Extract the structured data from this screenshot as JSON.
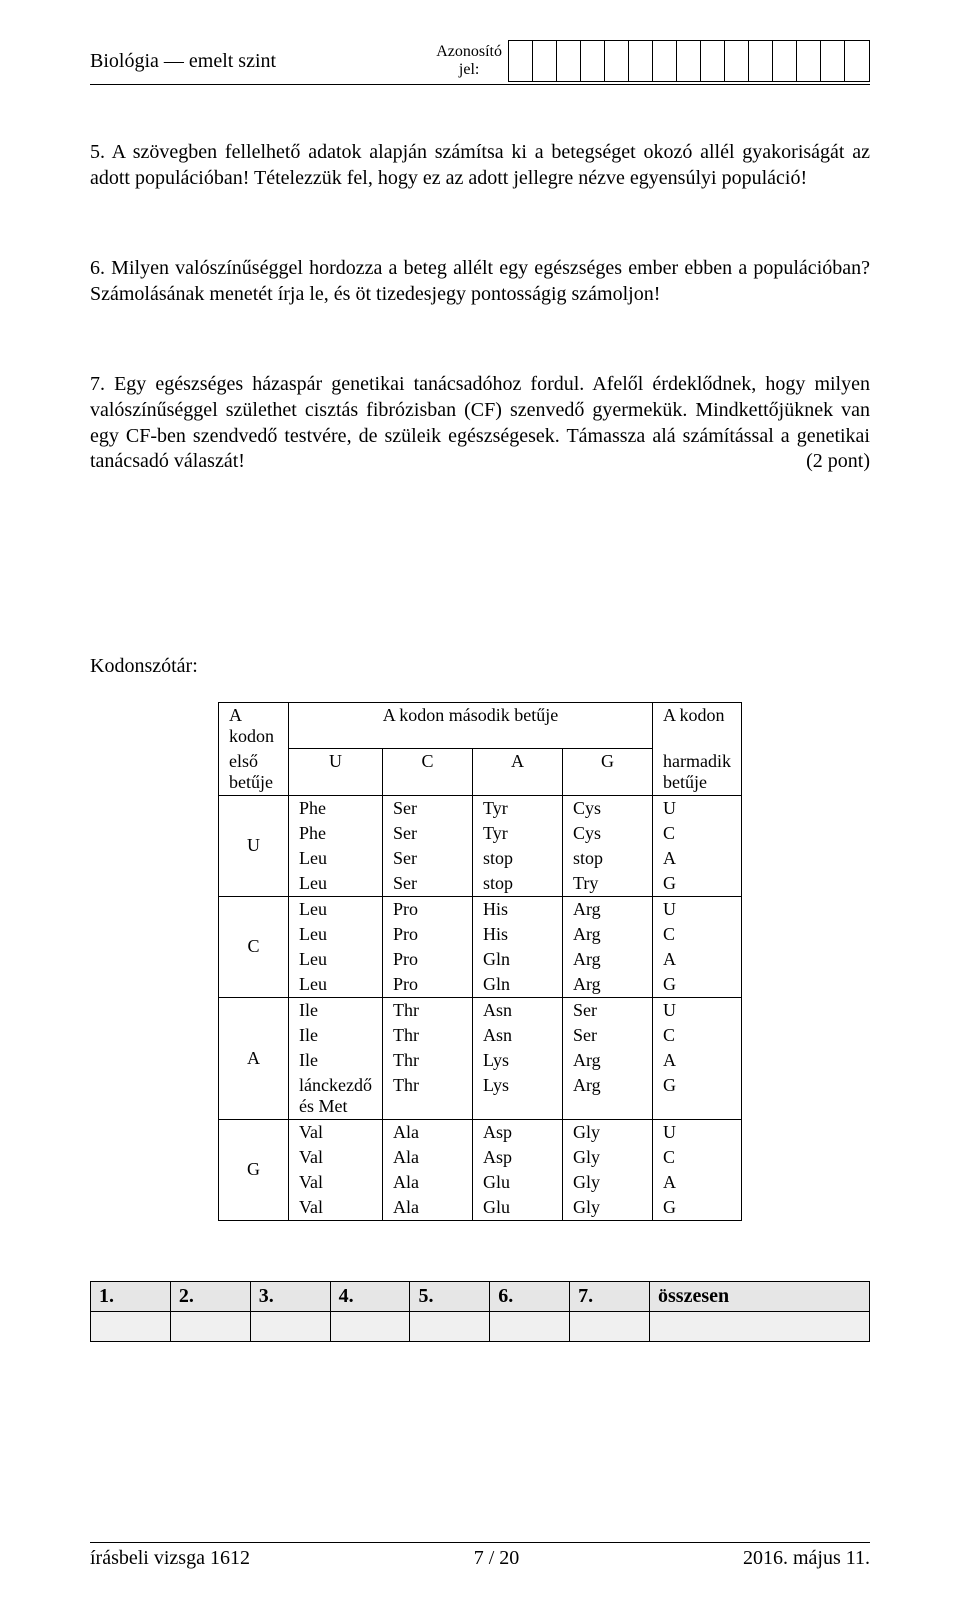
{
  "header": {
    "subject": "Biológia — emelt szint",
    "id_label_line1": "Azonosító",
    "id_label_line2": "jel:",
    "box_count": 15
  },
  "questions": {
    "q5": "5. A szövegben fellelhető adatok alapján számítsa ki a betegséget okozó allél gyakoriságát az adott populációban! Tételezzük fel, hogy ez az adott jellegre nézve egyensúlyi populáció!",
    "q6": "6. Milyen valószínűséggel hordozza a beteg allélt egy egészséges ember ebben a populációban? Számolásának menetét írja le, és öt tizedesjegy pontosságig számoljon!",
    "q7": "7. Egy egészséges házaspár genetikai tanácsadóhoz fordul. Afelől érdeklődnek, hogy milyen valószínűséggel születhet cisztás fibrózisban (CF) szenvedő gyermekük. Mindkettőjüknek van egy CF-ben szendvedő testvére, de szüleik egészségesek. Támassza alá számítással a genetikai tanácsadó válaszát!",
    "q7_points": "(2 pont)"
  },
  "codon_section": {
    "title": "Kodonszótár:",
    "header_first": "A kodon első betűje",
    "header_second": "A kodon második betűje",
    "header_third": "A kodon harmadik betűje",
    "cols": [
      "U",
      "C",
      "A",
      "G"
    ],
    "groups": [
      {
        "first": "U",
        "rows": [
          [
            "Phe",
            "Ser",
            "Tyr",
            "Cys",
            "U"
          ],
          [
            "Phe",
            "Ser",
            "Tyr",
            "Cys",
            "C"
          ],
          [
            "Leu",
            "Ser",
            "stop",
            "stop",
            "A"
          ],
          [
            "Leu",
            "Ser",
            "stop",
            "Try",
            "G"
          ]
        ]
      },
      {
        "first": "C",
        "rows": [
          [
            "Leu",
            "Pro",
            "His",
            "Arg",
            "U"
          ],
          [
            "Leu",
            "Pro",
            "His",
            "Arg",
            "C"
          ],
          [
            "Leu",
            "Pro",
            "Gln",
            "Arg",
            "A"
          ],
          [
            "Leu",
            "Pro",
            "Gln",
            "Arg",
            "G"
          ]
        ]
      },
      {
        "first": "A",
        "rows": [
          [
            "Ile",
            "Thr",
            "Asn",
            "Ser",
            "U"
          ],
          [
            "Ile",
            "Thr",
            "Asn",
            "Ser",
            "C"
          ],
          [
            "Ile",
            "Thr",
            "Lys",
            "Arg",
            "A"
          ],
          [
            "lánckezdő és Met",
            "Thr",
            "Lys",
            "Arg",
            "G"
          ]
        ]
      },
      {
        "first": "G",
        "rows": [
          [
            "Val",
            "Ala",
            "Asp",
            "Gly",
            "U"
          ],
          [
            "Val",
            "Ala",
            "Asp",
            "Gly",
            "C"
          ],
          [
            "Val",
            "Ala",
            "Glu",
            "Gly",
            "A"
          ],
          [
            "Val",
            "Ala",
            "Glu",
            "Gly",
            "G"
          ]
        ]
      }
    ]
  },
  "points_table": {
    "headers": [
      "1.",
      "2.",
      "3.",
      "4.",
      "5.",
      "6.",
      "7.",
      "összesen"
    ]
  },
  "footer": {
    "left": "írásbeli vizsga 1612",
    "center": "7 / 20",
    "right": "2016. május 11."
  }
}
